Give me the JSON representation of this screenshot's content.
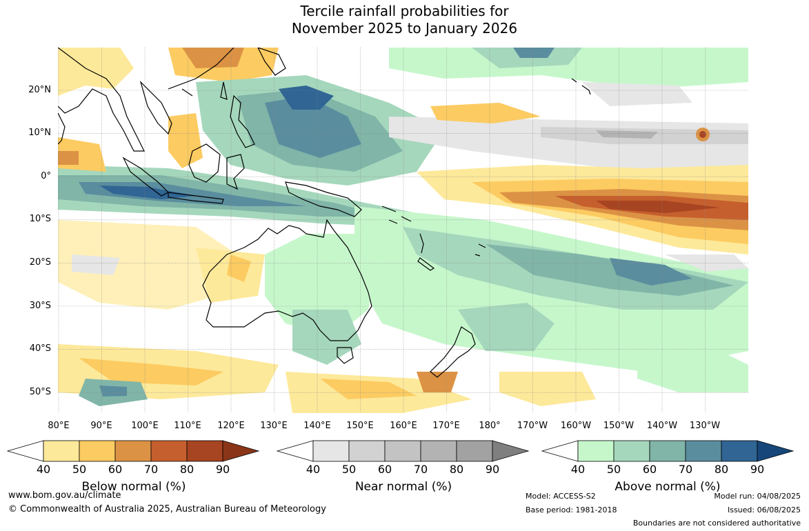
{
  "title": {
    "line1": "Tercile rainfall probabilities for",
    "line2": "November 2025 to January 2026"
  },
  "lat_labels": [
    "20°N",
    "10°N",
    "0°",
    "10°S",
    "20°S",
    "30°S",
    "40°S",
    "50°S"
  ],
  "lon_labels": [
    "80°E",
    "90°E",
    "100°E",
    "110°E",
    "120°E",
    "130°E",
    "140°E",
    "150°E",
    "160°E",
    "170°E",
    "180°",
    "170°W",
    "160°W",
    "150°W",
    "140°W",
    "130°W"
  ],
  "colorbars": [
    {
      "id": "below",
      "title": "Below normal (%)",
      "ticks": [
        "40",
        "50",
        "60",
        "70",
        "80",
        "90"
      ],
      "colors": [
        "#ffffff",
        "#fde99a",
        "#fccb61",
        "#dc9244",
        "#c65f2e",
        "#a74421",
        "#8a3518"
      ]
    },
    {
      "id": "near",
      "title": "Near normal (%)",
      "ticks": [
        "40",
        "50",
        "60",
        "70",
        "80",
        "90"
      ],
      "colors": [
        "#ffffff",
        "#e6e6e6",
        "#d2d2d2",
        "#c3c3c3",
        "#b3b3b3",
        "#a2a2a2",
        "#7f7f7f"
      ]
    },
    {
      "id": "above",
      "title": "Above normal (%)",
      "ticks": [
        "40",
        "50",
        "60",
        "70",
        "80",
        "90"
      ],
      "colors": [
        "#ffffff",
        "#c6f7cb",
        "#a5d7bc",
        "#80b5a8",
        "#5a8d9e",
        "#306594",
        "#17477a"
      ]
    }
  ],
  "footer": {
    "website": "www.bom.gov.au/climate",
    "copyright": "© Commonwealth of Australia 2025, Australian Bureau of Meteorology",
    "model": "Model: ACCESS-S2",
    "base_period": "Base period: 1981-2018",
    "model_run": "Model run: 04/08/2025",
    "issued": "Issued: 06/08/2025",
    "disclaimer": "Boundaries are not considered authoritative"
  }
}
